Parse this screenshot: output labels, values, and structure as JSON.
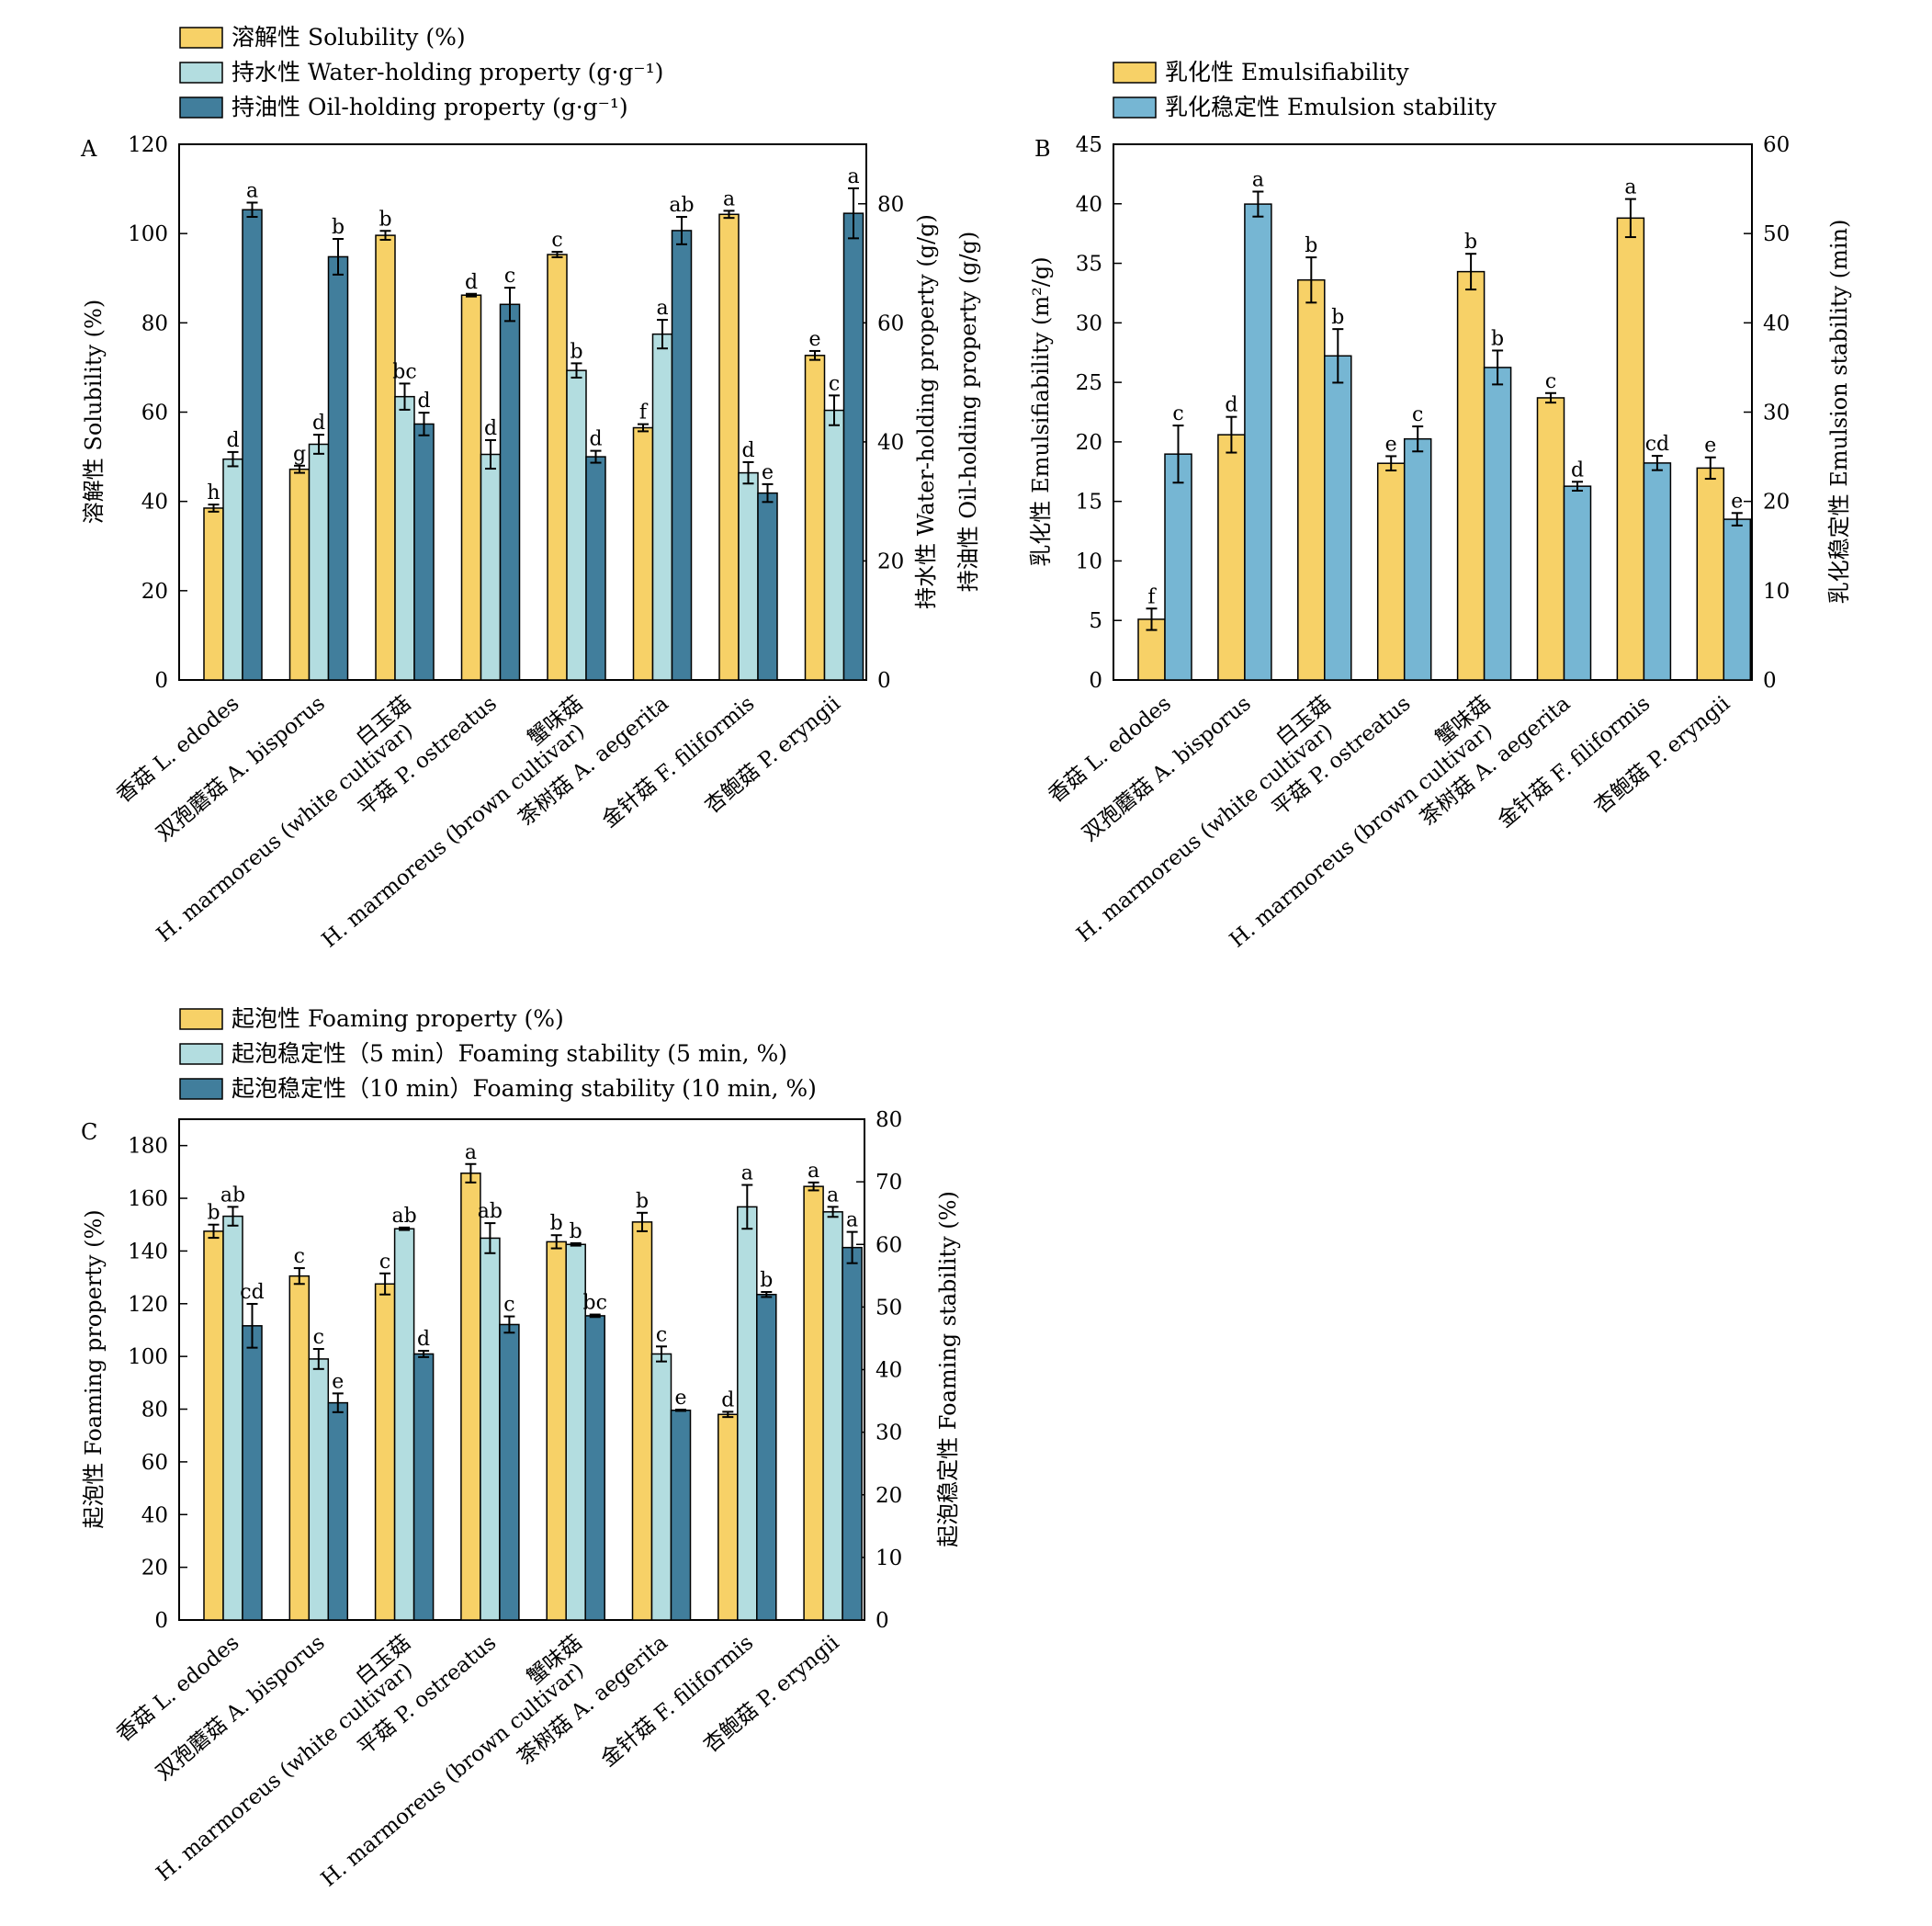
{
  "palette": {
    "c1": "#F7D167",
    "c2": "#B3DDE0",
    "c3": "#417E9C",
    "bblue": "#76B6D3",
    "edge": "#000000"
  },
  "charts": [
    {
      "panel_label": "A",
      "legend": [
        "溶解性 Solubility (%)",
        "持水性 Water-holding property (g·g⁻¹)",
        "持油性 Oil-holding property (g·g⁻¹)"
      ],
      "ylabel_left": "溶解性 Solubility (%)",
      "ylabel_right": [
        "持水性 Water-holding property (g/g)",
        "持油性 Oil-holding property (g/g)"
      ],
      "left_ticks": [
        "0",
        "20",
        "40",
        "60",
        "80",
        "100",
        "120"
      ],
      "right_ticks": [
        "0",
        "20",
        "40",
        "60",
        "80"
      ],
      "categories": [
        {
          "lines": [
            "香菇 L. edodes"
          ]
        },
        {
          "lines": [
            "双孢蘑菇 A. bisporus"
          ]
        },
        {
          "lines": [
            "白玉菇",
            "H. marmoreus (white cultivar)"
          ]
        },
        {
          "lines": [
            "平菇 P. ostreatus"
          ]
        },
        {
          "lines": [
            "蟹味菇",
            "H. marmoreus (brown cultivar)"
          ]
        },
        {
          "lines": [
            "茶树菇 A. aegerita"
          ]
        },
        {
          "lines": [
            "金针菇 F. filiformis"
          ]
        },
        {
          "lines": [
            "杏鲍菇 P. eryngii"
          ]
        }
      ]
    },
    {
      "panel_label": "B",
      "legend": [
        "乳化性 Emulsifiability",
        "乳化稳定性 Emulsion stability"
      ],
      "ylabel_left": "乳化性 Emulsifiability (m²/g)",
      "ylabel_right": [
        "乳化稳定性 Emulsion stability (min)"
      ],
      "left_ticks": [
        "0",
        "5",
        "10",
        "15",
        "20",
        "25",
        "30",
        "35",
        "40",
        "45"
      ],
      "right_ticks": [
        "0",
        "10",
        "20",
        "30",
        "40",
        "50",
        "60"
      ],
      "categories": [
        {
          "lines": [
            "香菇 L. edodes"
          ]
        },
        {
          "lines": [
            "双孢蘑菇 A. bisporus"
          ]
        },
        {
          "lines": [
            "白玉菇",
            "H. marmoreus (white cultivar)"
          ]
        },
        {
          "lines": [
            "平菇 P. ostreatus"
          ]
        },
        {
          "lines": [
            "蟹味菇",
            "H. marmoreus (brown cultivar)"
          ]
        },
        {
          "lines": [
            "茶树菇 A. aegerita"
          ]
        },
        {
          "lines": [
            "金针菇 F. filiformis"
          ]
        },
        {
          "lines": [
            "杏鲍菇 P. eryngii"
          ]
        }
      ]
    },
    {
      "panel_label": "C",
      "legend": [
        "起泡性 Foaming property (%)",
        "起泡稳定性（5 min）Foaming stability (5 min, %)",
        "起泡稳定性（10 min）Foaming stability (10 min, %)"
      ],
      "ylabel_left": "起泡性 Foaming property (%)",
      "ylabel_right": [
        "起泡稳定性 Foaming stability (%)"
      ],
      "left_ticks": [
        "0",
        "20",
        "40",
        "60",
        "80",
        "100",
        "120",
        "140",
        "160",
        "180"
      ],
      "right_ticks": [
        "0",
        "10",
        "20",
        "30",
        "40",
        "50",
        "60",
        "70",
        "80"
      ],
      "categories": [
        {
          "lines": [
            "香菇 L. edodes"
          ]
        },
        {
          "lines": [
            "双孢蘑菇 A. bisporus"
          ]
        },
        {
          "lines": [
            "白玉菇",
            "H. marmoreus (white cultivar)"
          ]
        },
        {
          "lines": [
            "平菇 P. ostreatus"
          ]
        },
        {
          "lines": [
            "蟹味菇",
            "H. marmoreus (brown cultivar)"
          ]
        },
        {
          "lines": [
            "茶树菇 A. aegerita"
          ]
        },
        {
          "lines": [
            "金针菇 F. filiformis"
          ]
        },
        {
          "lines": [
            "杏鲍菇 P. eryngii"
          ]
        }
      ]
    }
  ],
  "chart_data": [
    {
      "type": "bar",
      "panel": "A",
      "categories": [
        "香菇 L. edodes",
        "双孢蘑菇 A. bisporus",
        "白玉菇 H. marmoreus (white cultivar)",
        "平菇 P. ostreatus",
        "蟹味菇 H. marmoreus (brown cultivar)",
        "茶树菇 A. aegerita",
        "金针菇 F. filiformis",
        "杏鲍菇 P. eryngii"
      ],
      "ylim_left": [
        0,
        120
      ],
      "ylim_right": [
        0,
        90
      ],
      "series": [
        {
          "name": "溶解性 Solubility (%)",
          "axis": "left",
          "color": "#F7D167",
          "values": [
            38.5,
            47.2,
            99.6,
            86.2,
            95.3,
            56.5,
            104.3,
            72.7
          ],
          "errors": [
            0.8,
            0.8,
            1.0,
            0.3,
            0.6,
            0.8,
            0.8,
            1.0
          ],
          "letters": [
            "h",
            "g",
            "b",
            "d",
            "c",
            "f",
            "a",
            "e"
          ]
        },
        {
          "name": "持水性 Water-holding property (g·g⁻¹)",
          "axis": "right",
          "color": "#B3DDE0",
          "values": [
            37.1,
            39.6,
            47.6,
            37.9,
            52.0,
            58.1,
            34.8,
            45.3
          ],
          "errors": [
            1.2,
            1.6,
            2.2,
            2.4,
            1.2,
            2.4,
            1.8,
            2.5
          ],
          "letters": [
            "d",
            "d",
            "bc",
            "d",
            "b",
            "a",
            "d",
            "c"
          ]
        },
        {
          "name": "持油性 Oil-holding property (g·g⁻¹)",
          "axis": "right",
          "color": "#417E9C",
          "values": [
            79.0,
            71.1,
            43.0,
            63.1,
            37.5,
            75.5,
            31.4,
            78.4
          ],
          "errors": [
            1.2,
            3.0,
            1.9,
            2.8,
            1.0,
            2.3,
            1.5,
            4.2
          ],
          "letters": [
            "a",
            "b",
            "d",
            "c",
            "d",
            "ab",
            "e",
            "a"
          ]
        }
      ]
    },
    {
      "type": "bar",
      "panel": "B",
      "categories": [
        "香菇 L. edodes",
        "双孢蘑菇 A. bisporus",
        "白玉菇 H. marmoreus (white cultivar)",
        "平菇 P. ostreatus",
        "蟹味菇 H. marmoreus (brown cultivar)",
        "茶树菇 A. aegerita",
        "金针菇 F. filiformis",
        "杏鲍菇 P. eryngii"
      ],
      "ylim_left": [
        0,
        45
      ],
      "ylim_right": [
        0,
        60
      ],
      "series": [
        {
          "name": "乳化性 Emulsifiability",
          "axis": "left",
          "color": "#F7D167",
          "values": [
            5.1,
            20.6,
            33.6,
            18.2,
            34.3,
            23.7,
            38.8,
            17.8
          ],
          "errors": [
            0.9,
            1.5,
            1.9,
            0.6,
            1.5,
            0.4,
            1.6,
            0.9
          ],
          "letters": [
            "f",
            "d",
            "b",
            "e",
            "b",
            "c",
            "a",
            "e"
          ]
        },
        {
          "name": "乳化稳定性 Emulsion stability",
          "axis": "right",
          "color": "#76B6D3",
          "values": [
            25.3,
            53.3,
            36.3,
            27.0,
            35.0,
            21.7,
            24.3,
            18.0
          ],
          "errors": [
            3.2,
            1.4,
            3.0,
            1.4,
            1.9,
            0.5,
            0.8,
            0.7
          ],
          "letters": [
            "c",
            "a",
            "b",
            "c",
            "b",
            "d",
            "cd",
            "e"
          ]
        }
      ]
    },
    {
      "type": "bar",
      "panel": "C",
      "categories": [
        "香菇 L. edodes",
        "双孢蘑菇 A. bisporus",
        "白玉菇 H. marmoreus (white cultivar)",
        "平菇 P. ostreatus",
        "蟹味菇 H. marmoreus (brown cultivar)",
        "茶树菇 A. aegerita",
        "金针菇 F. filiformis",
        "杏鲍菇 P. eryngii"
      ],
      "ylim_left": [
        0,
        190
      ],
      "ylim_right": [
        0,
        80
      ],
      "series": [
        {
          "name": "起泡性 Foaming property (%)",
          "axis": "left",
          "color": "#F7D167",
          "values": [
            147.5,
            130.5,
            127.5,
            169.5,
            143.5,
            151.0,
            78.0,
            164.5
          ],
          "errors": [
            2.5,
            3.0,
            4.0,
            3.5,
            2.5,
            3.5,
            1.0,
            1.5
          ],
          "letters": [
            "b",
            "c",
            "c",
            "a",
            "b",
            "b",
            "d",
            "a"
          ]
        },
        {
          "name": "起泡稳定性（5 min）Foaming stability (5 min, %)",
          "axis": "right",
          "color": "#B3DDE0",
          "values": [
            64.5,
            41.7,
            62.5,
            61.0,
            60.0,
            42.5,
            66.0,
            65.2
          ],
          "errors": [
            1.5,
            1.6,
            0.2,
            2.4,
            0.2,
            1.2,
            3.5,
            0.8
          ],
          "letters": [
            "ab",
            "c",
            "ab",
            "ab",
            "b",
            "c",
            "a",
            "a"
          ]
        },
        {
          "name": "起泡稳定性（10 min）Foaming stability (10 min, %)",
          "axis": "right",
          "color": "#417E9C",
          "values": [
            47.0,
            34.7,
            42.5,
            47.2,
            48.6,
            33.5,
            52.0,
            59.5
          ],
          "errors": [
            3.5,
            1.5,
            0.5,
            1.3,
            0.2,
            0.1,
            0.4,
            2.5
          ],
          "letters": [
            "cd",
            "e",
            "d",
            "c",
            "bc",
            "e",
            "b",
            "a"
          ]
        }
      ]
    }
  ]
}
